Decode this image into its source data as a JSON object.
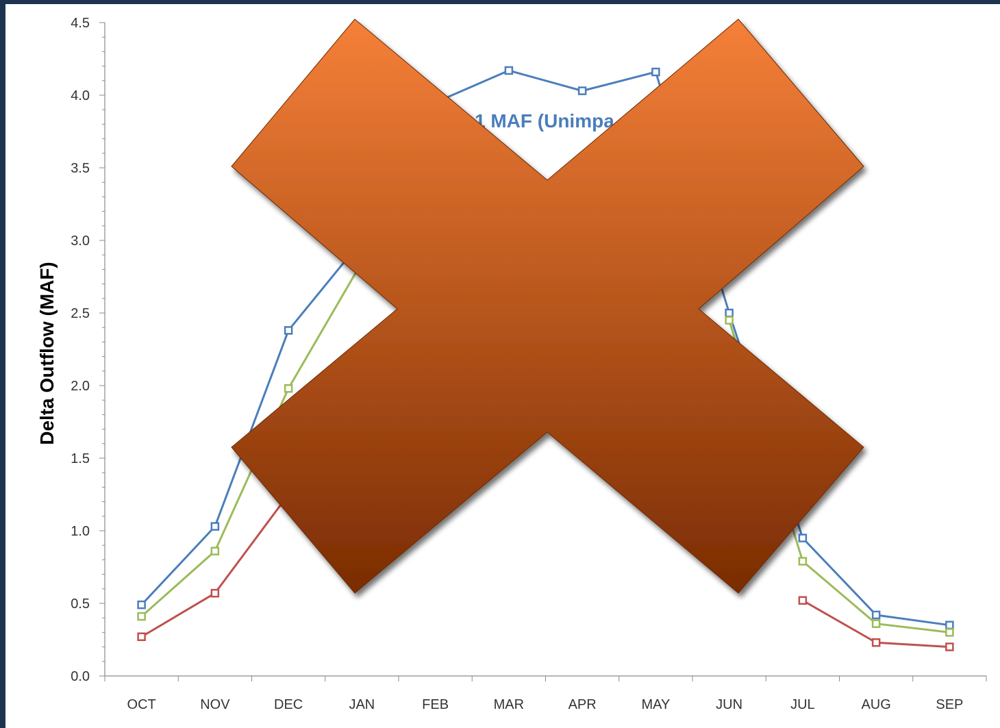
{
  "chart_data": {
    "type": "line",
    "ylabel": "Delta Outflow (MAF)",
    "ylim": [
      0,
      4.5
    ],
    "yticks": [
      "0.0",
      "0.5",
      "1.0",
      "1.5",
      "2.0",
      "2.5",
      "3.0",
      "3.5",
      "4.0",
      "4.5"
    ],
    "categories": [
      "OCT",
      "NOV",
      "DEC",
      "JAN",
      "FEB",
      "MAR",
      "APR",
      "MAY",
      "JUN",
      "JUL",
      "AUG",
      "SEP"
    ],
    "annotation": "1 MAF (Unimpa",
    "series": [
      {
        "color": "#4a7ebb",
        "values": [
          0.49,
          1.03,
          2.38,
          3.0,
          3.95,
          4.17,
          4.03,
          4.16,
          2.5,
          0.95,
          0.42,
          0.35
        ]
      },
      {
        "color": "#9bbb59",
        "values": [
          0.41,
          0.86,
          1.98,
          2.85,
          null,
          null,
          null,
          null,
          2.45,
          0.79,
          0.36,
          0.3
        ]
      },
      {
        "color": "#c0504d",
        "values": [
          0.27,
          0.57,
          1.25,
          null,
          null,
          null,
          null,
          null,
          null,
          0.52,
          0.23,
          0.2
        ]
      }
    ]
  },
  "overlay": {
    "icon": "x-cross-icon",
    "color_top": "#f58038",
    "color_bottom": "#7a2c02"
  }
}
